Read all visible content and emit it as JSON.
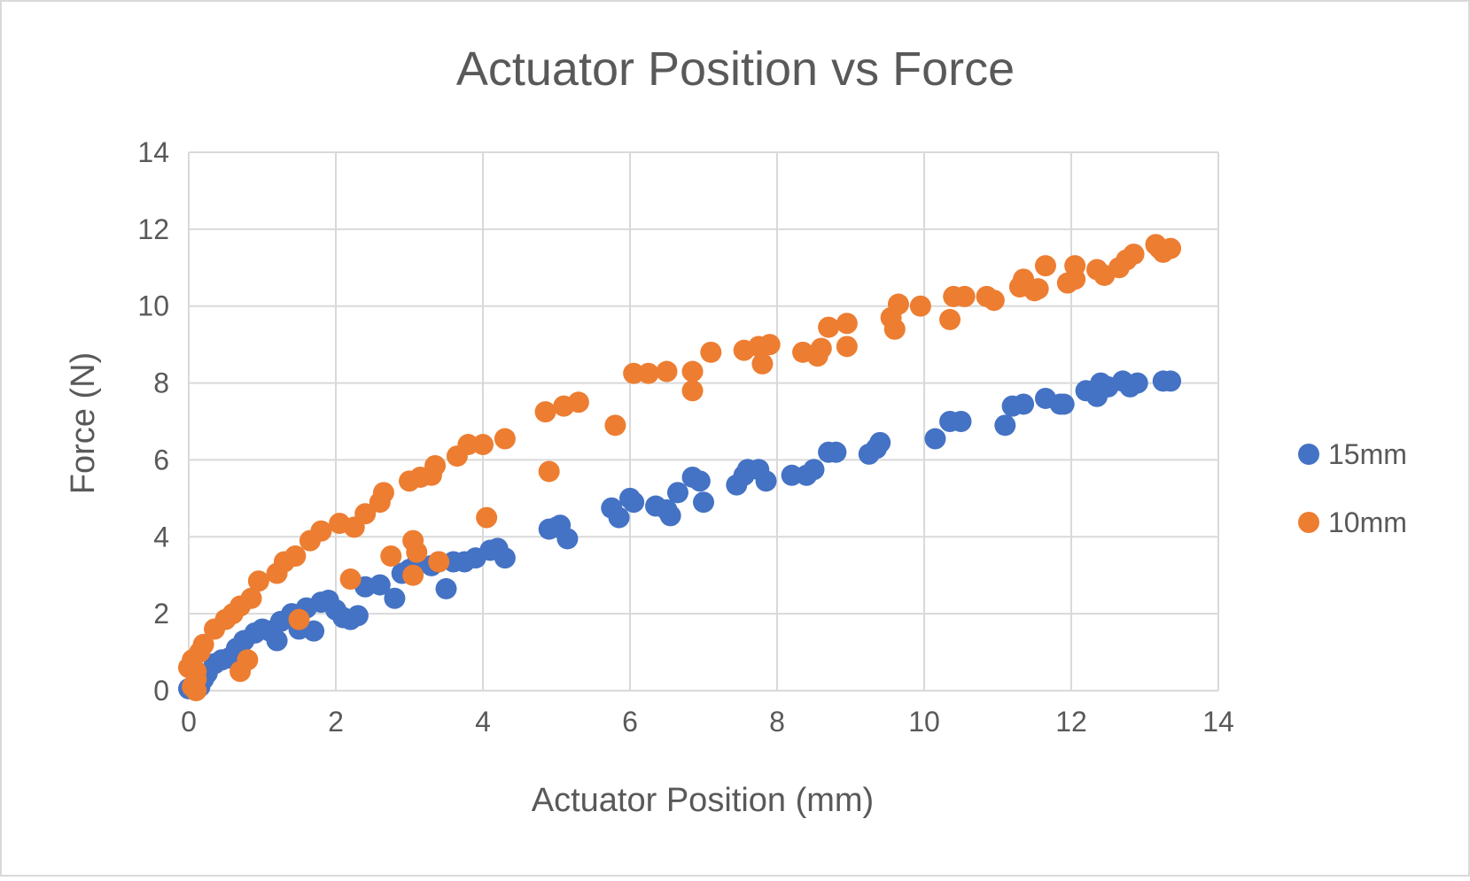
{
  "chart_data": {
    "type": "scatter",
    "title": "Actuator Position vs Force",
    "xlabel": "Actuator Position (mm)",
    "ylabel": "Force (N)",
    "xlim": [
      0,
      14
    ],
    "ylim": [
      0,
      14
    ],
    "x_ticks": [
      "0",
      "2",
      "4",
      "6",
      "8",
      "10",
      "12",
      "14"
    ],
    "y_ticks": [
      "0",
      "2",
      "4",
      "6",
      "8",
      "10",
      "12",
      "14"
    ],
    "grid": true,
    "legend": "right",
    "series": [
      {
        "name": "15mm",
        "color": "#4472C4",
        "points": [
          [
            0.0,
            0.05
          ],
          [
            0.05,
            0.1
          ],
          [
            0.1,
            0.15
          ],
          [
            0.15,
            0.1
          ],
          [
            0.2,
            0.3
          ],
          [
            0.25,
            0.45
          ],
          [
            0.35,
            0.7
          ],
          [
            0.45,
            0.8
          ],
          [
            0.55,
            0.85
          ],
          [
            0.65,
            1.1
          ],
          [
            0.75,
            1.3
          ],
          [
            0.9,
            1.5
          ],
          [
            1.0,
            1.6
          ],
          [
            1.1,
            1.55
          ],
          [
            1.2,
            1.3
          ],
          [
            1.25,
            1.8
          ],
          [
            1.4,
            2.0
          ],
          [
            1.5,
            1.6
          ],
          [
            1.6,
            2.15
          ],
          [
            1.7,
            1.55
          ],
          [
            1.8,
            2.3
          ],
          [
            1.9,
            2.35
          ],
          [
            2.0,
            2.1
          ],
          [
            2.1,
            1.9
          ],
          [
            2.2,
            1.85
          ],
          [
            2.3,
            1.95
          ],
          [
            2.4,
            2.7
          ],
          [
            2.6,
            2.75
          ],
          [
            2.8,
            2.4
          ],
          [
            2.9,
            3.05
          ],
          [
            3.0,
            3.15
          ],
          [
            3.1,
            3.3
          ],
          [
            3.3,
            3.25
          ],
          [
            3.4,
            3.35
          ],
          [
            3.5,
            2.65
          ],
          [
            3.6,
            3.35
          ],
          [
            3.75,
            3.35
          ],
          [
            3.9,
            3.45
          ],
          [
            4.1,
            3.65
          ],
          [
            4.2,
            3.7
          ],
          [
            4.3,
            3.45
          ],
          [
            4.9,
            4.2
          ],
          [
            5.0,
            4.25
          ],
          [
            5.05,
            4.3
          ],
          [
            5.15,
            3.95
          ],
          [
            5.75,
            4.75
          ],
          [
            5.85,
            4.5
          ],
          [
            6.0,
            5.0
          ],
          [
            6.05,
            4.9
          ],
          [
            6.35,
            4.8
          ],
          [
            6.5,
            4.7
          ],
          [
            6.55,
            4.55
          ],
          [
            6.65,
            5.15
          ],
          [
            6.85,
            5.55
          ],
          [
            6.95,
            5.45
          ],
          [
            7.0,
            4.9
          ],
          [
            7.45,
            5.35
          ],
          [
            7.55,
            5.6
          ],
          [
            7.6,
            5.75
          ],
          [
            7.75,
            5.75
          ],
          [
            7.85,
            5.45
          ],
          [
            8.2,
            5.6
          ],
          [
            8.4,
            5.6
          ],
          [
            8.5,
            5.75
          ],
          [
            8.7,
            6.2
          ],
          [
            8.8,
            6.2
          ],
          [
            9.25,
            6.15
          ],
          [
            9.35,
            6.3
          ],
          [
            9.4,
            6.45
          ],
          [
            10.15,
            6.55
          ],
          [
            10.35,
            7.0
          ],
          [
            10.5,
            7.0
          ],
          [
            11.1,
            6.9
          ],
          [
            11.2,
            7.4
          ],
          [
            11.35,
            7.45
          ],
          [
            11.65,
            7.6
          ],
          [
            11.85,
            7.45
          ],
          [
            11.9,
            7.45
          ],
          [
            12.2,
            7.8
          ],
          [
            12.35,
            7.65
          ],
          [
            12.4,
            8.0
          ],
          [
            12.5,
            7.9
          ],
          [
            12.7,
            8.05
          ],
          [
            12.8,
            7.9
          ],
          [
            12.9,
            8.0
          ],
          [
            13.25,
            8.05
          ],
          [
            13.35,
            8.05
          ]
        ]
      },
      {
        "name": "10mm",
        "color": "#ED7D31",
        "points": [
          [
            0.0,
            0.6
          ],
          [
            0.05,
            0.8
          ],
          [
            0.05,
            0.1
          ],
          [
            0.1,
            0.0
          ],
          [
            0.1,
            0.3
          ],
          [
            0.1,
            0.5
          ],
          [
            0.15,
            1.0
          ],
          [
            0.2,
            1.2
          ],
          [
            0.35,
            1.6
          ],
          [
            0.5,
            1.85
          ],
          [
            0.6,
            2.0
          ],
          [
            0.7,
            2.2
          ],
          [
            0.7,
            0.5
          ],
          [
            0.8,
            0.8
          ],
          [
            0.85,
            2.4
          ],
          [
            0.95,
            2.85
          ],
          [
            1.2,
            3.05
          ],
          [
            1.3,
            3.35
          ],
          [
            1.45,
            3.5
          ],
          [
            1.5,
            1.85
          ],
          [
            1.65,
            3.9
          ],
          [
            1.8,
            4.15
          ],
          [
            2.05,
            4.35
          ],
          [
            2.2,
            2.9
          ],
          [
            2.25,
            4.25
          ],
          [
            2.4,
            4.6
          ],
          [
            2.6,
            4.9
          ],
          [
            2.65,
            5.15
          ],
          [
            2.75,
            3.5
          ],
          [
            3.0,
            5.45
          ],
          [
            3.05,
            3.0
          ],
          [
            3.05,
            3.9
          ],
          [
            3.1,
            3.6
          ],
          [
            3.15,
            5.55
          ],
          [
            3.3,
            5.6
          ],
          [
            3.35,
            5.85
          ],
          [
            3.4,
            3.35
          ],
          [
            3.65,
            6.1
          ],
          [
            3.8,
            6.4
          ],
          [
            4.0,
            6.4
          ],
          [
            4.05,
            4.5
          ],
          [
            4.3,
            6.55
          ],
          [
            4.85,
            7.25
          ],
          [
            4.9,
            5.7
          ],
          [
            5.1,
            7.4
          ],
          [
            5.3,
            7.5
          ],
          [
            5.8,
            6.9
          ],
          [
            6.05,
            8.25
          ],
          [
            6.25,
            8.25
          ],
          [
            6.5,
            8.3
          ],
          [
            6.85,
            8.3
          ],
          [
            6.85,
            7.8
          ],
          [
            7.1,
            8.8
          ],
          [
            7.55,
            8.85
          ],
          [
            7.75,
            8.95
          ],
          [
            7.8,
            8.5
          ],
          [
            7.9,
            9.0
          ],
          [
            8.35,
            8.8
          ],
          [
            8.55,
            8.7
          ],
          [
            8.6,
            8.9
          ],
          [
            8.7,
            9.45
          ],
          [
            8.95,
            9.55
          ],
          [
            8.95,
            8.95
          ],
          [
            9.55,
            9.7
          ],
          [
            9.6,
            9.4
          ],
          [
            9.65,
            10.05
          ],
          [
            9.95,
            10.0
          ],
          [
            10.35,
            9.65
          ],
          [
            10.4,
            10.25
          ],
          [
            10.55,
            10.25
          ],
          [
            10.85,
            10.25
          ],
          [
            10.95,
            10.15
          ],
          [
            11.3,
            10.5
          ],
          [
            11.35,
            10.7
          ],
          [
            11.5,
            10.4
          ],
          [
            11.55,
            10.45
          ],
          [
            11.65,
            11.05
          ],
          [
            11.95,
            10.6
          ],
          [
            12.05,
            11.05
          ],
          [
            12.05,
            10.7
          ],
          [
            12.35,
            10.95
          ],
          [
            12.45,
            10.8
          ],
          [
            12.65,
            11.0
          ],
          [
            12.75,
            11.2
          ],
          [
            12.85,
            11.35
          ],
          [
            13.15,
            11.6
          ],
          [
            13.2,
            11.5
          ],
          [
            13.25,
            11.4
          ],
          [
            13.35,
            11.5
          ]
        ]
      }
    ]
  }
}
